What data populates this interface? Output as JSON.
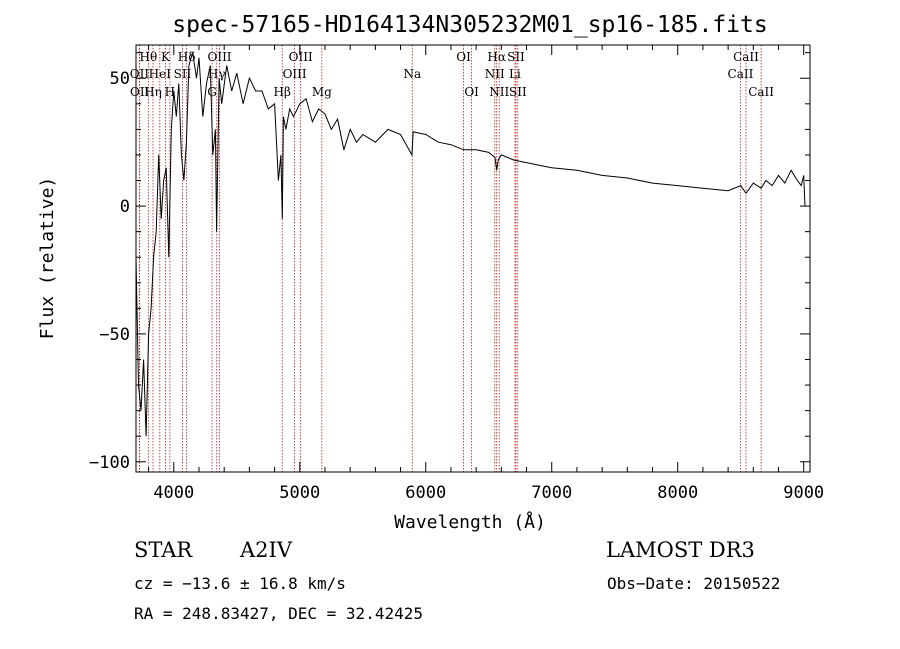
{
  "chart_data": {
    "type": "line",
    "title": "spec-57165-HD164134N305232M01_sp16-185.fits",
    "xlabel": "Wavelength (Å)",
    "ylabel": "Flux (relative)",
    "xlim": [
      3700,
      9050
    ],
    "ylim": [
      -104,
      63
    ],
    "x_ticks": [
      4000,
      5000,
      6000,
      7000,
      8000,
      9000
    ],
    "y_ticks": [
      -100,
      -50,
      0,
      50
    ],
    "grid": false,
    "line_color": "#000000",
    "marker_color": "#b22222",
    "series": [
      {
        "x": [
          3700,
          3720,
          3740,
          3760,
          3780,
          3800,
          3820,
          3840,
          3860,
          3880,
          3900,
          3920,
          3940,
          3960,
          3980,
          4000,
          4020,
          4040,
          4060,
          4080,
          4100,
          4120,
          4150,
          4180,
          4200,
          4230,
          4260,
          4290,
          4310,
          4330,
          4340,
          4360,
          4380,
          4420,
          4460,
          4500,
          4550,
          4600,
          4650,
          4700,
          4750,
          4800,
          4830,
          4850,
          4861,
          4870,
          4890,
          4920,
          4950,
          5000,
          5050,
          5100,
          5150,
          5200,
          5250,
          5300,
          5350,
          5400,
          5450,
          5500,
          5600,
          5700,
          5800,
          5890,
          5900,
          6000,
          6100,
          6200,
          6300,
          6400,
          6500,
          6550,
          6563,
          6575,
          6600,
          6700,
          6800,
          6900,
          7000,
          7200,
          7400,
          7600,
          7800,
          8000,
          8200,
          8400,
          8500,
          8542,
          8600,
          8662,
          8700,
          8750,
          8800,
          8850,
          8900,
          8950,
          8980,
          9000,
          9010
        ],
        "y": [
          -20,
          -70,
          -80,
          -60,
          -90,
          -50,
          -40,
          -20,
          -10,
          20,
          -5,
          10,
          15,
          -20,
          30,
          45,
          35,
          48,
          20,
          10,
          25,
          55,
          60,
          50,
          58,
          35,
          48,
          55,
          20,
          30,
          -10,
          50,
          40,
          55,
          45,
          52,
          40,
          50,
          45,
          45,
          38,
          40,
          10,
          20,
          -5,
          35,
          30,
          38,
          35,
          40,
          42,
          33,
          38,
          36,
          30,
          34,
          22,
          30,
          25,
          28,
          25,
          30,
          28,
          20,
          29,
          28,
          25,
          24,
          22,
          22,
          21,
          19,
          14,
          18,
          20,
          18,
          17,
          16,
          15,
          14,
          12,
          11,
          9,
          8,
          7,
          6,
          8,
          5,
          9,
          7,
          10,
          8,
          12,
          9,
          14,
          10,
          8,
          12,
          0
        ]
      }
    ],
    "line_markers": [
      {
        "label": "Hθ",
        "x": 3798,
        "row": 1
      },
      {
        "label": "OII",
        "x": 3727,
        "row": 2
      },
      {
        "label": "OII",
        "x": 3729,
        "row": 3
      },
      {
        "label": "Hη",
        "x": 3835,
        "row": 3
      },
      {
        "label": "HeI",
        "x": 3889,
        "row": 2
      },
      {
        "label": "K",
        "x": 3934,
        "row": 1
      },
      {
        "label": "H",
        "x": 3969,
        "row": 3
      },
      {
        "label": "SII",
        "x": 4069,
        "row": 2
      },
      {
        "label": "Hδ",
        "x": 4102,
        "row": 1
      },
      {
        "label": "OIII",
        "x": 4363,
        "row": 1
      },
      {
        "label": "Hγ",
        "x": 4341,
        "row": 2
      },
      {
        "label": "G",
        "x": 4304,
        "row": 3
      },
      {
        "label": "Hβ",
        "x": 4861,
        "row": 3
      },
      {
        "label": "OIII",
        "x": 4959,
        "row": 2
      },
      {
        "label": "OIII",
        "x": 5007,
        "row": 1
      },
      {
        "label": "Mg",
        "x": 5175,
        "row": 3
      },
      {
        "label": "Na",
        "x": 5893,
        "row": 2
      },
      {
        "label": "OI",
        "x": 6300,
        "row": 1
      },
      {
        "label": "OI",
        "x": 6364,
        "row": 3
      },
      {
        "label": "NII",
        "x": 6548,
        "row": 2
      },
      {
        "label": "Hα",
        "x": 6563,
        "row": 1
      },
      {
        "label": "NII",
        "x": 6583,
        "row": 3
      },
      {
        "label": "SII",
        "x": 6716,
        "row": 1
      },
      {
        "label": "Li",
        "x": 6708,
        "row": 2
      },
      {
        "label": "SII",
        "x": 6731,
        "row": 3
      },
      {
        "label": "CaII",
        "x": 8542,
        "row": 1
      },
      {
        "label": "CaII",
        "x": 8498,
        "row": 2
      },
      {
        "label": "CaII",
        "x": 8662,
        "row": 3
      }
    ]
  },
  "info": {
    "object_class": "STAR",
    "subclass": "A2IV",
    "survey": "LAMOST DR3",
    "cz": "cz = −13.6 ± 16.8 km/s",
    "obs_date": "Obs−Date: 20150522",
    "coords": "RA = 248.83427, DEC =  32.42425"
  }
}
